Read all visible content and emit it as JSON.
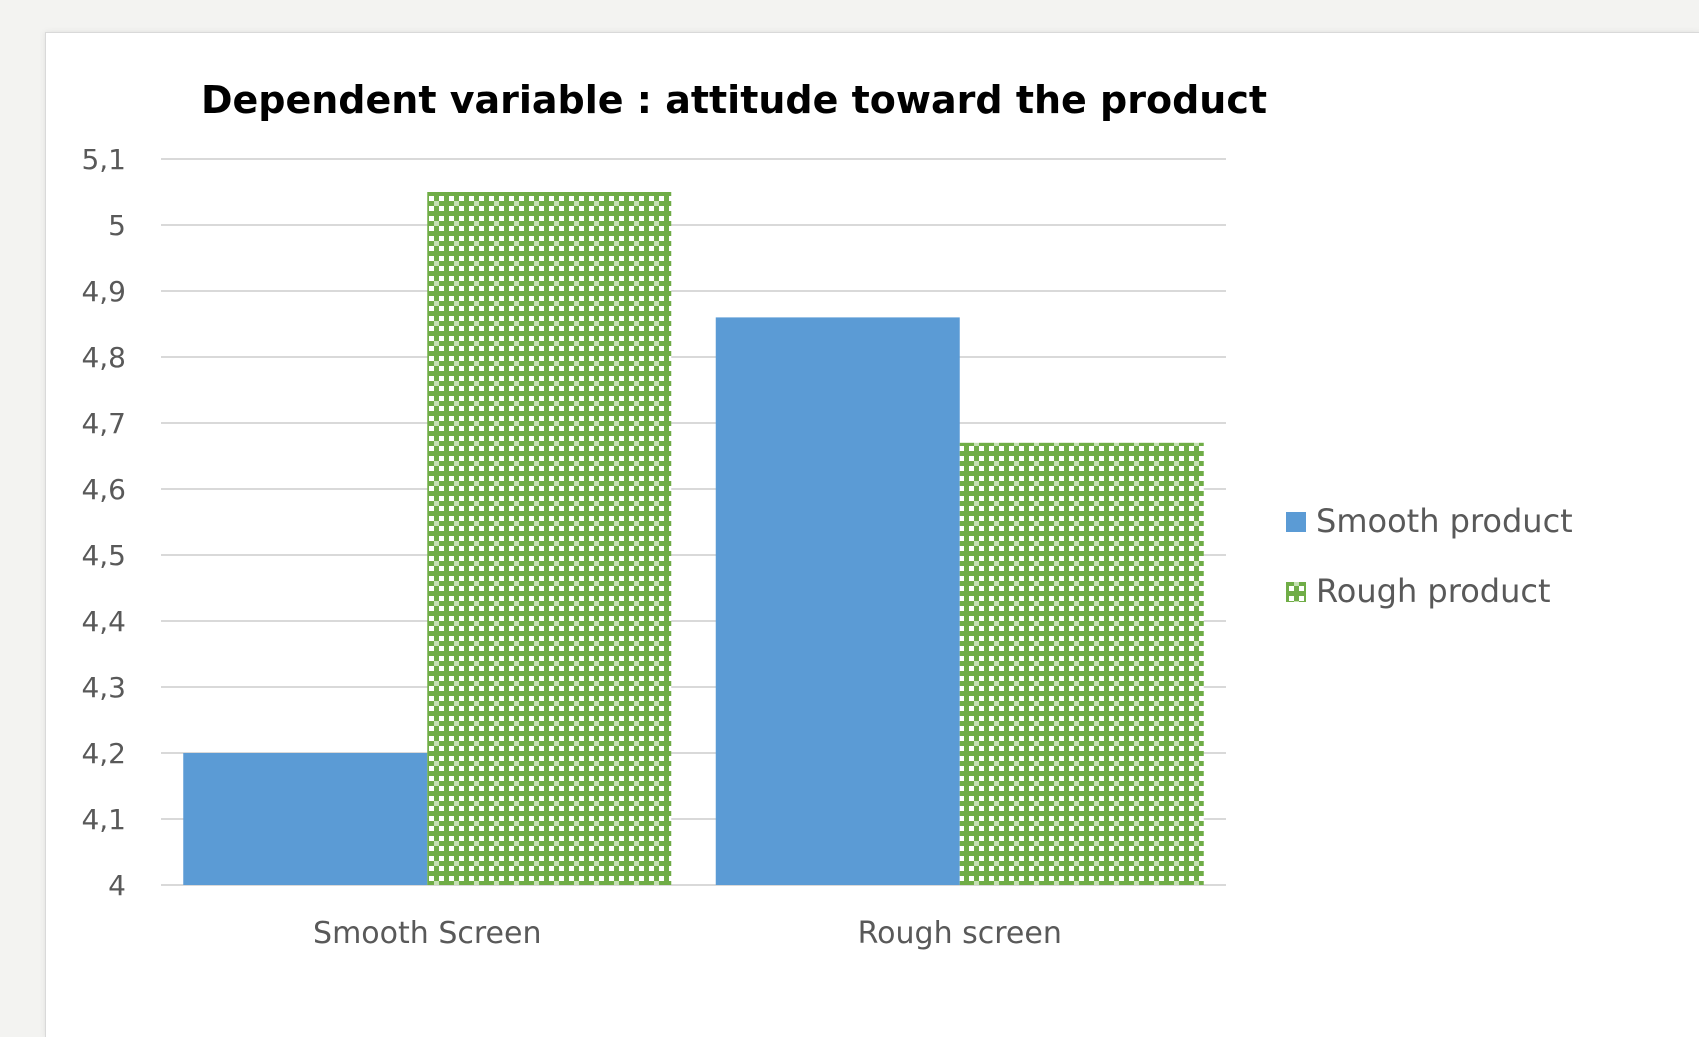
{
  "chart_data": {
    "type": "bar",
    "title": "Dependent variable : attitude toward the product",
    "xlabel": "",
    "ylabel": "",
    "categories": [
      "Smooth Screen",
      "Rough screen"
    ],
    "series": [
      {
        "name": "Smooth product",
        "values": [
          4.2,
          4.86
        ],
        "color": "#5b9bd5",
        "pattern": "solid"
      },
      {
        "name": "Rough product",
        "values": [
          5.05,
          4.67
        ],
        "color": "#70ad47",
        "pattern": "checker"
      }
    ],
    "ylim": [
      4,
      5.1
    ],
    "yticks": [
      "4",
      "4,1",
      "4,2",
      "4,3",
      "4,4",
      "4,5",
      "4,6",
      "4,7",
      "4,8",
      "4,9",
      "5",
      "5,1"
    ],
    "ytick_values": [
      4,
      4.1,
      4.2,
      4.3,
      4.4,
      4.5,
      4.6,
      4.7,
      4.8,
      4.9,
      5,
      5.1
    ],
    "grid": true,
    "legend_position": "right",
    "colors": {
      "gridline": "#d9d9d9",
      "axis_text": "#595959",
      "pattern_light": "#ffffff"
    }
  }
}
